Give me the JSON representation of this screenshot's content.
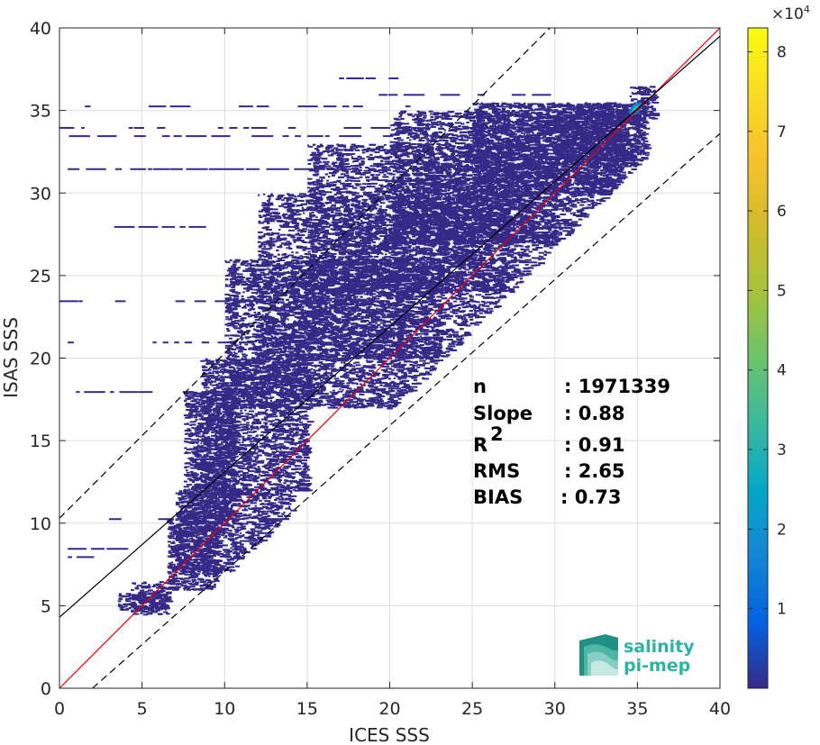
{
  "chart_data": {
    "type": "heatmap",
    "subtype": "2d-density-scatter",
    "xlabel": "ICES SSS",
    "ylabel": "ISAS SSS",
    "xlim": [
      0,
      40
    ],
    "ylim": [
      0,
      40
    ],
    "xticks": [
      0,
      5,
      10,
      15,
      20,
      25,
      30,
      35,
      40
    ],
    "yticks": [
      0,
      5,
      10,
      15,
      20,
      25,
      30,
      35,
      40
    ],
    "grid": true,
    "colormap": "parula",
    "colorbar": {
      "min": 0,
      "max": 83000,
      "ticks": [
        1,
        2,
        3,
        4,
        5,
        6,
        7,
        8
      ],
      "exponent_label": "×10",
      "exponent": "4"
    },
    "lines": [
      {
        "name": "identity",
        "color": "#e8000b",
        "style": "solid",
        "points": [
          [
            0,
            0
          ],
          [
            40,
            40
          ]
        ]
      },
      {
        "name": "fit",
        "color": "#000000",
        "style": "solid",
        "points": [
          [
            0,
            4.3
          ],
          [
            40,
            39.5
          ]
        ]
      },
      {
        "name": "upper-bound",
        "color": "#000000",
        "style": "dashed",
        "points": [
          [
            0,
            10.3
          ],
          [
            40,
            50.3
          ]
        ]
      },
      {
        "name": "lower-bound",
        "color": "#000000",
        "style": "dashed",
        "points": [
          [
            2,
            0
          ],
          [
            40,
            33.6
          ]
        ]
      }
    ],
    "density_regions": [
      {
        "x": [
          4.3,
          6.5
        ],
        "y": [
          4.5,
          6.5
        ],
        "level": 0.02
      },
      {
        "x": [
          6.5,
          9.5
        ],
        "y": [
          6,
          10.5
        ],
        "level": 0.02
      },
      {
        "x": [
          7,
          14
        ],
        "y": [
          7,
          12
        ],
        "level": 0.01
      },
      {
        "x": [
          7.5,
          10.5
        ],
        "y": [
          10,
          18
        ],
        "level": 0.01
      },
      {
        "x": [
          8.5,
          15
        ],
        "y": [
          12,
          20
        ],
        "level": 0.01
      },
      {
        "x": [
          10,
          23
        ],
        "y": [
          17,
          26
        ],
        "level": 0.01
      },
      {
        "x": [
          12,
          27
        ],
        "y": [
          20,
          30
        ],
        "level": 0.01
      },
      {
        "x": [
          15,
          30
        ],
        "y": [
          24,
          33
        ],
        "level": 0.01
      },
      {
        "x": [
          20,
          34
        ],
        "y": [
          27,
          35
        ],
        "level": 0.015
      },
      {
        "x": [
          25,
          35
        ],
        "y": [
          30,
          35.5
        ],
        "level": 0.02
      },
      {
        "x": [
          30,
          35.5
        ],
        "y": [
          32,
          35.5
        ],
        "level": 0.03
      },
      {
        "x": [
          3.5,
          6.5
        ],
        "y": [
          4.8,
          5.8
        ],
        "level": 0.03
      },
      {
        "x": [
          34.5,
          36
        ],
        "y": [
          34.5,
          36.5
        ],
        "level": 0.12
      }
    ],
    "horizontal_streaks": [
      {
        "y": 35.3,
        "x": [
          0,
          35
        ]
      },
      {
        "y": 34.0,
        "x": [
          0,
          33
        ]
      },
      {
        "y": 33.5,
        "x": [
          0,
          20
        ]
      },
      {
        "y": 31.5,
        "x": [
          0.5,
          25
        ]
      },
      {
        "y": 37.0,
        "x": [
          15,
          23
        ]
      },
      {
        "y": 36.0,
        "x": [
          17,
          30
        ]
      },
      {
        "y": 28.0,
        "x": [
          0.5,
          18
        ]
      },
      {
        "y": 23.5,
        "x": [
          0,
          20
        ]
      },
      {
        "y": 21.0,
        "x": [
          0.5,
          22
        ]
      },
      {
        "y": 18.0,
        "x": [
          1,
          19
        ]
      },
      {
        "y": 8.5,
        "x": [
          0.5,
          4
        ]
      },
      {
        "y": 8.0,
        "x": [
          0.5,
          4
        ]
      },
      {
        "y": 10.3,
        "x": [
          3,
          13
        ]
      }
    ]
  },
  "stats": {
    "rows": [
      {
        "label": "n",
        "value": ": 1971339"
      },
      {
        "label": "Slope",
        "value": ": 0.88"
      },
      {
        "label": "R",
        "sup": "2",
        "value": ": 0.91"
      },
      {
        "label": "RMS",
        "value": ": 2.65"
      },
      {
        "label": "BIAS",
        "value": ": 0.73"
      }
    ]
  },
  "logo": {
    "line1": "salinity",
    "line2": "pi-mep"
  },
  "colors": {
    "identity_line": "#e8000b",
    "fit_line": "#000000",
    "density_low": "#352a87",
    "logo_teal": "#2bb3a3"
  }
}
